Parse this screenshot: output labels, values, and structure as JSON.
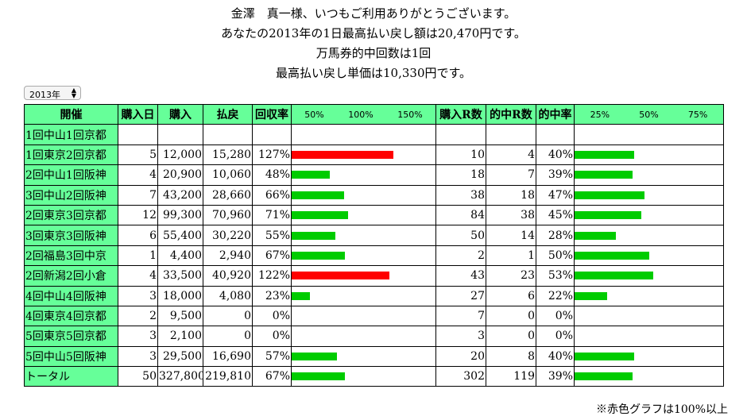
{
  "header": {
    "line1": "金澤　真一様、いつもご利用ありがとうございます。",
    "line2": "あなたの2013年の1日最高払い戻し額は20,470円です。",
    "line3": "万馬券的中回数は1回",
    "line4": "最高払い戻し単価は10,330円です。"
  },
  "year_select": {
    "value": "2013年"
  },
  "table": {
    "headers": [
      "開催",
      "購入日",
      "購入",
      "払戻",
      "回収率",
      "",
      "購入R数",
      "的中R数",
      "的中率",
      ""
    ],
    "scale_return": [
      "50%",
      "100%",
      "150%"
    ],
    "scale_hit": [
      "25%",
      "50%",
      "75%"
    ],
    "rows": [
      {
        "name": "1回中山1回京都",
        "days": "",
        "buy": "",
        "payout": "",
        "rate": "",
        "rate_val": null,
        "races": "",
        "hits": "",
        "hit_rate": "",
        "hit_val": null
      },
      {
        "name": "1回東京2回京都",
        "days": "5",
        "buy": "12,000",
        "payout": "15,280",
        "rate": "127%",
        "rate_val": 127,
        "races": "10",
        "hits": "4",
        "hit_rate": "40%",
        "hit_val": 40
      },
      {
        "name": "2回中山1回阪神",
        "days": "4",
        "buy": "20,900",
        "payout": "10,060",
        "rate": "48%",
        "rate_val": 48,
        "races": "18",
        "hits": "7",
        "hit_rate": "39%",
        "hit_val": 39
      },
      {
        "name": "3回中山2回阪神",
        "days": "7",
        "buy": "43,200",
        "payout": "28,660",
        "rate": "66%",
        "rate_val": 66,
        "races": "38",
        "hits": "18",
        "hit_rate": "47%",
        "hit_val": 47
      },
      {
        "name": "2回東京3回京都",
        "days": "12",
        "buy": "99,300",
        "payout": "70,960",
        "rate": "71%",
        "rate_val": 71,
        "races": "84",
        "hits": "38",
        "hit_rate": "45%",
        "hit_val": 45
      },
      {
        "name": "3回東京3回阪神",
        "days": "6",
        "buy": "55,400",
        "payout": "30,220",
        "rate": "55%",
        "rate_val": 55,
        "races": "50",
        "hits": "14",
        "hit_rate": "28%",
        "hit_val": 28
      },
      {
        "name": "2回福島3回中京",
        "days": "1",
        "buy": "4,400",
        "payout": "2,940",
        "rate": "67%",
        "rate_val": 67,
        "races": "2",
        "hits": "1",
        "hit_rate": "50%",
        "hit_val": 50
      },
      {
        "name": "2回新潟2回小倉",
        "days": "4",
        "buy": "33,500",
        "payout": "40,920",
        "rate": "122%",
        "rate_val": 122,
        "races": "43",
        "hits": "23",
        "hit_rate": "53%",
        "hit_val": 53
      },
      {
        "name": "4回中山4回阪神",
        "days": "3",
        "buy": "18,000",
        "payout": "4,080",
        "rate": "23%",
        "rate_val": 23,
        "races": "27",
        "hits": "6",
        "hit_rate": "22%",
        "hit_val": 22
      },
      {
        "name": "4回東京4回京都",
        "days": "2",
        "buy": "9,500",
        "payout": "0",
        "rate": "0%",
        "rate_val": 0,
        "races": "7",
        "hits": "0",
        "hit_rate": "0%",
        "hit_val": 0
      },
      {
        "name": "5回東京5回京都",
        "days": "3",
        "buy": "2,100",
        "payout": "0",
        "rate": "0%",
        "rate_val": 0,
        "races": "3",
        "hits": "0",
        "hit_rate": "0%",
        "hit_val": 0
      },
      {
        "name": "5回中山5回阪神",
        "days": "3",
        "buy": "29,500",
        "payout": "16,690",
        "rate": "57%",
        "rate_val": 57,
        "races": "20",
        "hits": "8",
        "hit_rate": "40%",
        "hit_val": 40
      },
      {
        "name": "トータル",
        "days": "50",
        "buy": "327,800",
        "payout": "219,810",
        "rate": "67%",
        "rate_val": 67,
        "races": "302",
        "hits": "119",
        "hit_rate": "39%",
        "hit_val": 39
      }
    ]
  },
  "colors": {
    "header_bg": "#66ff99",
    "bar_green": "#00cc00",
    "bar_red": "#ff0000"
  },
  "footnote": "※赤色グラフは100%以上"
}
